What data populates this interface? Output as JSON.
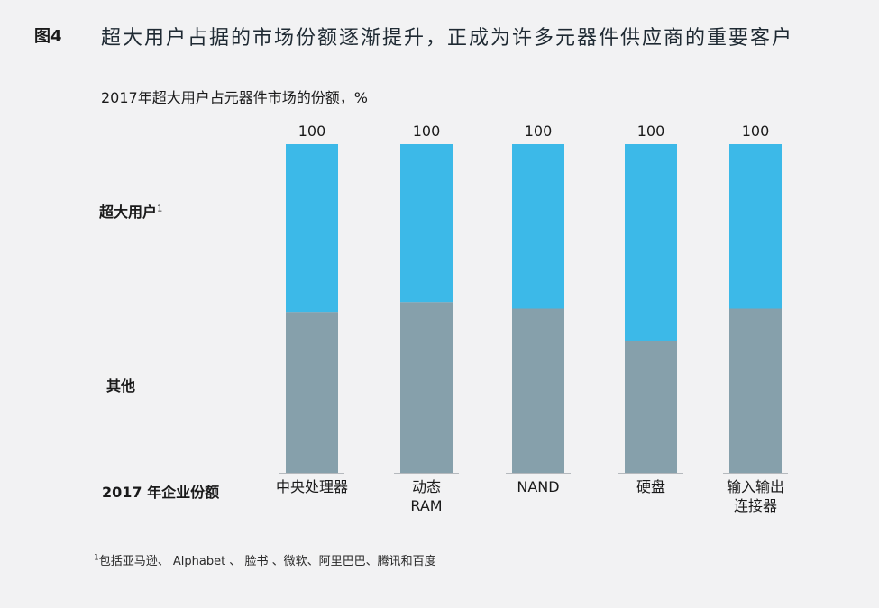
{
  "figure": {
    "label": "图4",
    "title": "超大用户占据的市场份额逐渐提升，正成为许多元器件供应商的重要客户"
  },
  "row_labels": {
    "hyperscale": "超大用户",
    "hyperscale_sup": "1",
    "other": "其他",
    "year": "2017 年企业份额"
  },
  "footnote": {
    "sup": "1",
    "text": "包括亚马逊、 Alphabet 、 脸书 、微软、阿里巴巴、腾讯和百度"
  },
  "colors": {
    "hyperscale": "#3cb9e8",
    "other": "#86a0ab",
    "axis": "#b5b9bd"
  },
  "chart_data": {
    "type": "bar",
    "stacked": true,
    "title": "2017年超大用户占元器件市场的份额，%",
    "categories": [
      [
        "中央处理器"
      ],
      [
        "动态",
        "RAM"
      ],
      [
        "NAND"
      ],
      [
        "硬盘"
      ],
      [
        "输入输出",
        "连接器"
      ]
    ],
    "totals": [
      100,
      100,
      100,
      100,
      100
    ],
    "series": [
      {
        "name": "超大用户",
        "values": [
          51,
          48,
          50,
          60,
          50
        ]
      },
      {
        "name": "其他",
        "values": [
          49,
          52,
          50,
          40,
          50
        ]
      }
    ],
    "ylim": [
      0,
      100
    ]
  }
}
